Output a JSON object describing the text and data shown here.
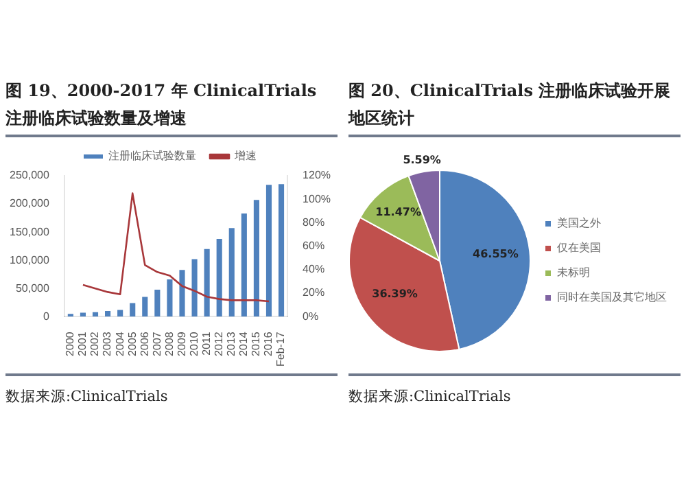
{
  "chart_data": [
    {
      "type": "bar",
      "title": "图 19、2000-2017 年 ClinicalTrials 注册临床试验数量及增速",
      "categories": [
        "2000",
        "2001",
        "2002",
        "2003",
        "2004",
        "2005",
        "2006",
        "2007",
        "2008",
        "2009",
        "2010",
        "2011",
        "2012",
        "2013",
        "2014",
        "2015",
        "2016",
        "Feb-17"
      ],
      "series": [
        {
          "name": "注册临床试验数量",
          "type": "bar",
          "color": "#4f81bd",
          "values": [
            5000,
            7000,
            8000,
            10000,
            12000,
            24000,
            35000,
            48000,
            66000,
            83000,
            102000,
            120000,
            138000,
            157000,
            183000,
            207000,
            234000,
            235000
          ]
        },
        {
          "name": "增速",
          "type": "line",
          "axis": "y2",
          "color": "#a8373a",
          "values": [
            null,
            27,
            24,
            21,
            19,
            105,
            44,
            38,
            35,
            26,
            22,
            17,
            15,
            14,
            14,
            14,
            13,
            null
          ]
        }
      ],
      "ylim": [
        0,
        250000
      ],
      "yticks": [
        {
          "value": 0,
          "label": "0"
        },
        {
          "value": 50000,
          "label": "50,000"
        },
        {
          "value": 100000,
          "label": "100,000"
        },
        {
          "value": 150000,
          "label": "150,000"
        },
        {
          "value": 200000,
          "label": "200,000"
        },
        {
          "value": 250000,
          "label": "250,000"
        }
      ],
      "y2lim": [
        0,
        120
      ],
      "y2ticks": [
        {
          "value": 0,
          "label": "0%"
        },
        {
          "value": 20,
          "label": "20%"
        },
        {
          "value": 40,
          "label": "40%"
        },
        {
          "value": 60,
          "label": "60%"
        },
        {
          "value": 80,
          "label": "80%"
        },
        {
          "value": 100,
          "label": "100%"
        },
        {
          "value": 120,
          "label": "120%"
        }
      ],
      "legend": "top",
      "grid": false,
      "marker": "none",
      "annotations": [
        "数据来源:ClinicalTrials"
      ]
    },
    {
      "type": "pie",
      "title": "图 20、ClinicalTrials 注册临床试验开展地区统计",
      "categories": [
        "美国之外",
        "仅在美国",
        "未标明",
        "同时在美国及其它地区"
      ],
      "values": [
        46.55,
        36.39,
        11.47,
        5.59
      ],
      "colors": [
        "#4f81bd",
        "#c0504d",
        "#9bbb59",
        "#8064a2"
      ],
      "value_labels": [
        "46.55%",
        "36.39%",
        "11.47%",
        "5.59%"
      ],
      "legend": "right",
      "annotations": [
        "数据来源:ClinicalTrials"
      ]
    }
  ]
}
